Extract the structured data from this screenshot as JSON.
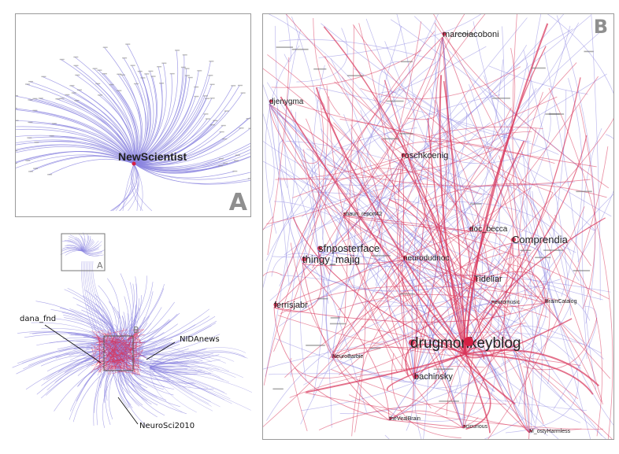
{
  "panel_a": {
    "letter": "A",
    "hub_label": "NewScientist"
  },
  "panel_b": {
    "letter": "B",
    "nodes": [
      {
        "name": "marcoiacoboni",
        "size": "m"
      },
      {
        "name": "djenygma",
        "size": "s"
      },
      {
        "name": "roschkoenig",
        "size": "m"
      },
      {
        "name": "sfnposterface",
        "size": "l"
      },
      {
        "name": "thingy_majig",
        "size": "l"
      },
      {
        "name": "Comprendia",
        "size": "l"
      },
      {
        "name": "doc_becca",
        "size": "s"
      },
      {
        "name": "neurodudnoc",
        "size": "s"
      },
      {
        "name": "Tideliar",
        "size": "m"
      },
      {
        "name": "ferrisjabr",
        "size": "m"
      },
      {
        "name": "drugmonkeyblog",
        "size": "xl"
      },
      {
        "name": "bachinsky",
        "size": "m"
      },
      {
        "name": "NeuroBarbie",
        "size": "xs"
      },
      {
        "name": "BrainCatalog",
        "size": "xs"
      },
      {
        "name": "neuromusic",
        "size": "xs"
      },
      {
        "name": "theViralBrain",
        "size": "xs"
      },
      {
        "name": "scicurious",
        "size": "xs"
      },
      {
        "name": "shaun_report42",
        "size": "xs"
      },
      {
        "name": "M_ostyHarmless",
        "size": "xs"
      }
    ]
  },
  "overview": {
    "inset_letter_a": "A",
    "inset_letter_b": "B",
    "labels": [
      "dana_fnd",
      "NIDAnews",
      "NeuroSci2010"
    ]
  },
  "colors": {
    "blue_edge": "#8b84e0",
    "red_edge": "#d8345a",
    "hub_node": "#d51f44",
    "border": "#9a9a9a"
  }
}
